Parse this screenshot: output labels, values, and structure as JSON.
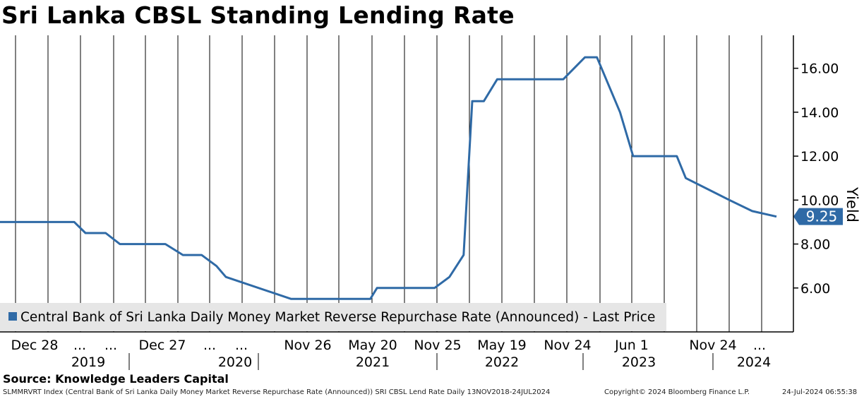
{
  "title": "Sri Lanka CBSL Standing Lending Rate",
  "source": "Source: Knowledge Leaders Capital",
  "footer": {
    "left": "SLMMRVRT Index (Central Bank of Sri Lanka Daily Money Market Reverse Repurchase Rate (Announced)) SRI CBSL Lend Rate  Daily 13NOV2018-24JUL2024",
    "copyright": "Copyright© 2024 Bloomberg Finance L.P.",
    "timestamp": "24-Jul-2024 06:55:38"
  },
  "chart_data": {
    "type": "line",
    "ylabel": "Yield",
    "ylim": [
      4.0,
      17.5
    ],
    "yticks": [
      6,
      8,
      10,
      12,
      14,
      16
    ],
    "ytick_labels": [
      "6.00",
      "8.00",
      "10.00",
      "12.00",
      "14.00",
      "16.00"
    ],
    "grid": "vertical lines at each x tick",
    "legend_position": "bottom-left",
    "last_value_label": "9.25",
    "x_tick_labels": [
      "Dec 28",
      "...",
      "...",
      "Dec 27",
      "...",
      "...",
      "Nov 26",
      "May 20",
      "Nov 25",
      "May 19",
      "Nov 24",
      "Jun 1",
      "Nov 24",
      "..."
    ],
    "x_year_labels": [
      "2019",
      "2020",
      "2021",
      "2022",
      "2023",
      "2024"
    ],
    "series": [
      {
        "name": "Central Bank of Sri Lanka Daily Money Market Reverse Repurchase Rate (Announced) - Last Price",
        "color": "#2f6aa6",
        "x": [
          "2018-11-13",
          "2019-01-01",
          "2019-05-31",
          "2019-06-30",
          "2019-08-23",
          "2019-09-30",
          "2019-12-31",
          "2020-01-30",
          "2020-03-17",
          "2020-04-16",
          "2020-05-06",
          "2020-06-15",
          "2020-07-10",
          "2021-01-01",
          "2021-08-01",
          "2021-08-19",
          "2021-11-01",
          "2022-01-20",
          "2022-03-01",
          "2022-04-08",
          "2022-05-01",
          "2022-06-01",
          "2022-07-07",
          "2022-12-31",
          "2023-02-27",
          "2023-03-31",
          "2023-06-01",
          "2023-07-06",
          "2023-10-31",
          "2023-11-24",
          "2024-03-20",
          "2024-05-20",
          "2024-07-24"
        ],
        "y": [
          9.0,
          9.0,
          9.0,
          8.5,
          8.5,
          8.0,
          8.0,
          8.0,
          7.5,
          7.5,
          7.5,
          7.0,
          6.5,
          5.5,
          5.5,
          6.0,
          6.0,
          6.0,
          6.5,
          7.5,
          14.5,
          14.5,
          15.5,
          15.5,
          16.5,
          16.5,
          14.0,
          12.0,
          12.0,
          11.0,
          10.0,
          9.5,
          9.25
        ]
      }
    ]
  }
}
